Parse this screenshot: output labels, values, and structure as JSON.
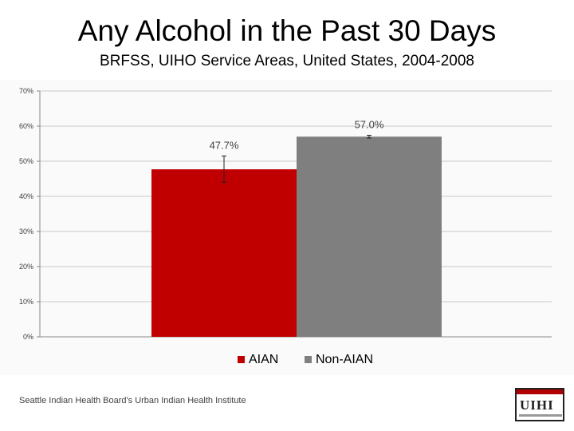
{
  "title": "Any Alcohol in the Past 30 Days",
  "subtitle": "BRFSS, UIHO Service Areas, United States, 2004-2008",
  "footer": "Seattle Indian Health Board's Urban Indian Health Institute",
  "logo_text": "UIHI",
  "chart_data": {
    "type": "bar",
    "categories": [
      "AIAN",
      "Non-AIAN"
    ],
    "values": [
      47.7,
      57.0
    ],
    "data_labels": [
      "47.7%",
      "57.0%"
    ],
    "error_bars": [
      {
        "low": 44.0,
        "high": 51.5
      },
      {
        "low": 56.6,
        "high": 57.4
      }
    ],
    "colors": [
      "#c00000",
      "#7f7f7f"
    ],
    "ylim": [
      0,
      70
    ],
    "yticks": [
      0,
      10,
      20,
      30,
      40,
      50,
      60,
      70
    ],
    "ytick_labels": [
      "0%",
      "10%",
      "20%",
      "30%",
      "40%",
      "50%",
      "60%",
      "70%"
    ],
    "grid": true,
    "legend": [
      "AIAN",
      "Non-AIAN"
    ],
    "legend_position": "bottom",
    "title": "",
    "xlabel": "",
    "ylabel": ""
  }
}
